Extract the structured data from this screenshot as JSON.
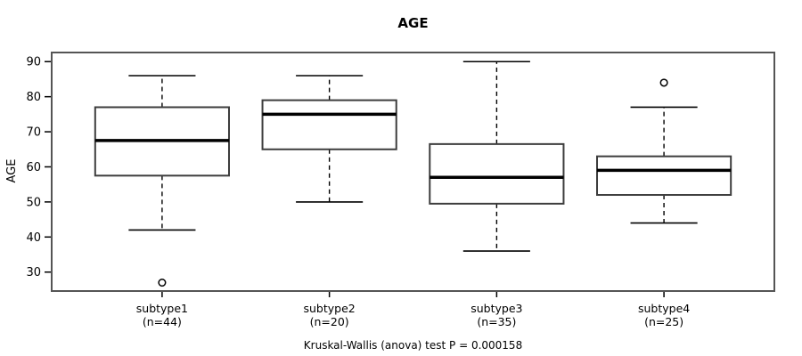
{
  "chart_data": {
    "type": "boxplot",
    "title": "AGE",
    "ylabel": "AGE",
    "xlabel": "",
    "caption": "Kruskal-Wallis (anova) test P = 0.000158",
    "y_ticks": [
      30,
      40,
      50,
      60,
      70,
      80,
      90
    ],
    "ylim": [
      24.6,
      92.6
    ],
    "xlim": [
      0.34,
      4.66
    ],
    "grid": false,
    "legend": "none",
    "box_width_units": 0.8,
    "cap_width_units": 0.4,
    "groups": [
      {
        "label": "subtype1",
        "sublabel": "(n=44)",
        "n": 44,
        "position": 1,
        "whisker_low": 42,
        "q1": 57.5,
        "median": 67.5,
        "q3": 77,
        "whisker_high": 86,
        "outliers": [
          27
        ]
      },
      {
        "label": "subtype2",
        "sublabel": "(n=20)",
        "n": 20,
        "position": 2,
        "whisker_low": 50,
        "q1": 65,
        "median": 75,
        "q3": 79,
        "whisker_high": 86,
        "outliers": []
      },
      {
        "label": "subtype3",
        "sublabel": "(n=35)",
        "n": 35,
        "position": 3,
        "whisker_low": 36,
        "q1": 49.5,
        "median": 57,
        "q3": 66.5,
        "whisker_high": 90,
        "outliers": []
      },
      {
        "label": "subtype4",
        "sublabel": "(n=25)",
        "n": 25,
        "position": 4,
        "whisker_low": 44,
        "q1": 52,
        "median": 59,
        "q3": 63,
        "whisker_high": 77,
        "outliers": [
          84
        ]
      }
    ],
    "colors": {
      "frame": "#555555",
      "box_border": "#3d3d3d",
      "median": "#000000",
      "whisker": "#000000",
      "tick": "#000000",
      "text": "#000000",
      "background": "#ffffff",
      "box_fill": "#ffffff"
    }
  }
}
